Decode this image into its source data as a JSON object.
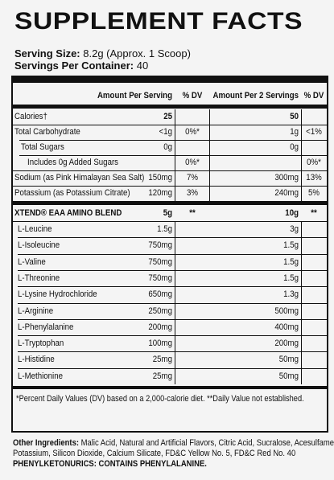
{
  "title": "SUPPLEMENT FACTS",
  "serving_size": {
    "label": "Serving Size:",
    "value": " 8.2g (Approx. 1 Scoop)"
  },
  "servings_per_container": {
    "label": "Servings Per Container:",
    "value": " 40"
  },
  "headers": {
    "per_serving": "Amount Per Serving",
    "dv1": "% DV",
    "per_2": "Amount Per 2 Servings",
    "dv2": "% DV"
  },
  "nutrients": [
    {
      "name": "Calories",
      "mark": "†",
      "amt": "25",
      "dv": "",
      "amt2": "50",
      "dv2": ""
    },
    {
      "name": "Total Carbohydrate",
      "mark": "",
      "amt": "<1g",
      "dv": "0%*",
      "amt2": "1g",
      "dv2": "<1%"
    },
    {
      "name": "Total Sugars",
      "mark": "",
      "amt": "0g",
      "dv": "",
      "amt2": "0g",
      "dv2": ""
    },
    {
      "name": "Includes 0g Added Sugars",
      "mark": "",
      "amt": "",
      "dv": "0%*",
      "amt2": "",
      "dv2": "0%*"
    },
    {
      "name": "Sodium (as Pink Himalayan Sea Salt)",
      "mark": "",
      "amt": "150mg",
      "dv": "7%",
      "amt2": "300mg",
      "dv2": "13%"
    },
    {
      "name": "Potassium (as Potassium Citrate)",
      "mark": "",
      "amt": "120mg",
      "dv": "3%",
      "amt2": "240mg",
      "dv2": "5%"
    }
  ],
  "blend": {
    "name": "XTEND® EAA AMINO BLEND",
    "amt": "5g",
    "dv": "**",
    "amt2": "10g",
    "dv2": "**"
  },
  "aminos": [
    {
      "name": "L-Leucine",
      "amt": "1.5g",
      "amt2": "3g"
    },
    {
      "name": "L-Isoleucine",
      "amt": "750mg",
      "amt2": "1.5g"
    },
    {
      "name": "L-Valine",
      "amt": "750mg",
      "amt2": "1.5g"
    },
    {
      "name": "L-Threonine",
      "amt": "750mg",
      "amt2": "1.5g"
    },
    {
      "name": "L-Lysine Hydrochloride",
      "amt": "650mg",
      "amt2": "1.3g"
    },
    {
      "name": "L-Arginine",
      "amt": "250mg",
      "amt2": "500mg"
    },
    {
      "name": "L-Phenylalanine",
      "amt": "200mg",
      "amt2": "400mg"
    },
    {
      "name": "L-Tryptophan",
      "amt": "100mg",
      "amt2": "200mg"
    },
    {
      "name": "L-Histidine",
      "amt": "25mg",
      "amt2": "50mg"
    },
    {
      "name": "L-Methionine",
      "amt": "25mg",
      "amt2": "50mg"
    }
  ],
  "footnote": "*Percent Daily Values (DV) based on a 2,000-calorie diet. **Daily Value not established.",
  "other_ingredients": {
    "label": "Other Ingredients:",
    "line1": " Malic Acid, Natural and Artificial Flavors, Citric Acid, Sucralose, Acesulfame",
    "line2": "Potassium, Silicon Dioxide, Calcium Silicate, FD&C Yellow No. 5, FD&C Red No. 40"
  },
  "warning": "PHENYLKETONURICS: CONTAINS PHENYLALANINE."
}
